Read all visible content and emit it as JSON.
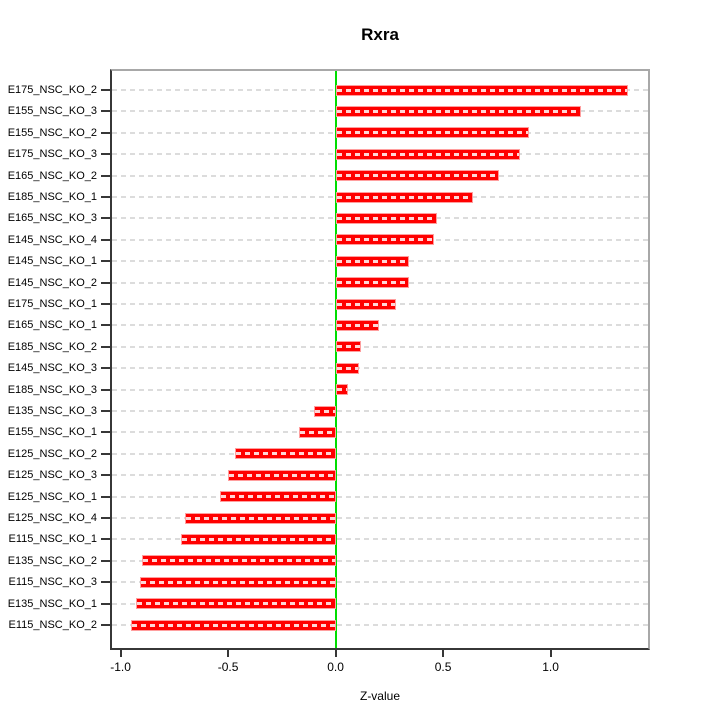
{
  "chart_data": {
    "type": "bar",
    "orientation": "horizontal",
    "title": "Rxra",
    "xlabel": "Z-value",
    "categories": [
      "E175_NSC_KO_2",
      "E155_NSC_KO_3",
      "E155_NSC_KO_2",
      "E175_NSC_KO_3",
      "E165_NSC_KO_2",
      "E185_NSC_KO_1",
      "E165_NSC_KO_3",
      "E145_NSC_KO_4",
      "E145_NSC_KO_1",
      "E145_NSC_KO_2",
      "E175_NSC_KO_1",
      "E165_NSC_KO_1",
      "E185_NSC_KO_2",
      "E145_NSC_KO_3",
      "E185_NSC_KO_3",
      "E135_NSC_KO_3",
      "E155_NSC_KO_1",
      "E125_NSC_KO_2",
      "E125_NSC_KO_3",
      "E125_NSC_KO_1",
      "E125_NSC_KO_4",
      "E115_NSC_KO_1",
      "E135_NSC_KO_2",
      "E115_NSC_KO_3",
      "E135_NSC_KO_1",
      "E115_NSC_KO_2"
    ],
    "values": [
      1.36,
      1.14,
      0.9,
      0.86,
      0.76,
      0.64,
      0.47,
      0.46,
      0.34,
      0.34,
      0.28,
      0.2,
      0.12,
      0.11,
      0.06,
      -0.1,
      -0.17,
      -0.47,
      -0.5,
      -0.54,
      -0.7,
      -0.72,
      -0.9,
      -0.91,
      -0.93,
      -0.95
    ],
    "x_ticks": [
      -1.0,
      -0.5,
      0.0,
      0.5,
      1.0
    ],
    "x_tick_labels": [
      "-1.0",
      "-0.5",
      "0.0",
      "0.5",
      "1.0"
    ],
    "xlim": [
      -1.04,
      1.453
    ],
    "grid": true,
    "grid_style": "dashed",
    "zero_line_value": 0.0,
    "legend": "none",
    "colors": {
      "bar_fill": "#ff0000",
      "bar_border": "#ff9e9e",
      "bar_dash": "#ffd6d6",
      "grid_line": "#dcdcdc",
      "zero_line": "#00dd00",
      "axis_dark": "#373737",
      "box_light": "#a8a8a8",
      "text": "#000000",
      "background": "#ffffff"
    }
  }
}
